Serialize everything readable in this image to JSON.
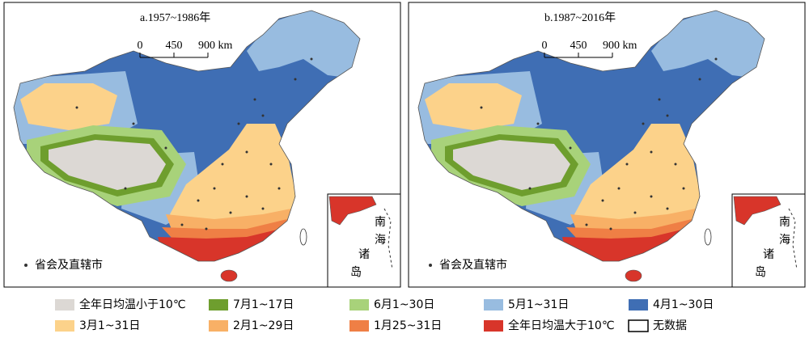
{
  "panels": [
    {
      "title": "a.1957~1986年",
      "scale_labels": [
        "0",
        "450",
        "900 km"
      ],
      "capital_label": "省会及直辖市",
      "inset_label": [
        "南",
        "海",
        "诸",
        "岛"
      ]
    },
    {
      "title": "b.1987~2016年",
      "scale_labels": [
        "0",
        "450",
        "900 km"
      ],
      "capital_label": "省会及直辖市",
      "inset_label": [
        "南",
        "海",
        "诸",
        "岛"
      ]
    }
  ],
  "legend": [
    {
      "label": "全年日均温小于10℃",
      "color": "#dcd8d4"
    },
    {
      "label": "7月1~17日",
      "color": "#6e9e2e"
    },
    {
      "label": "6月1~30日",
      "color": "#a8d27a"
    },
    {
      "label": "5月1~31日",
      "color": "#98bce0"
    },
    {
      "label": "4月1~30日",
      "color": "#3f6eb4"
    },
    {
      "label": "3月1~31日",
      "color": "#fcd28a"
    },
    {
      "label": "2月1~29日",
      "color": "#f8b066"
    },
    {
      "label": "1月25~31日",
      "color": "#ef7f45"
    },
    {
      "label": "全年日均温大于10℃",
      "color": "#d8352a"
    },
    {
      "label": "无数据",
      "color": "#ffffff"
    }
  ]
}
